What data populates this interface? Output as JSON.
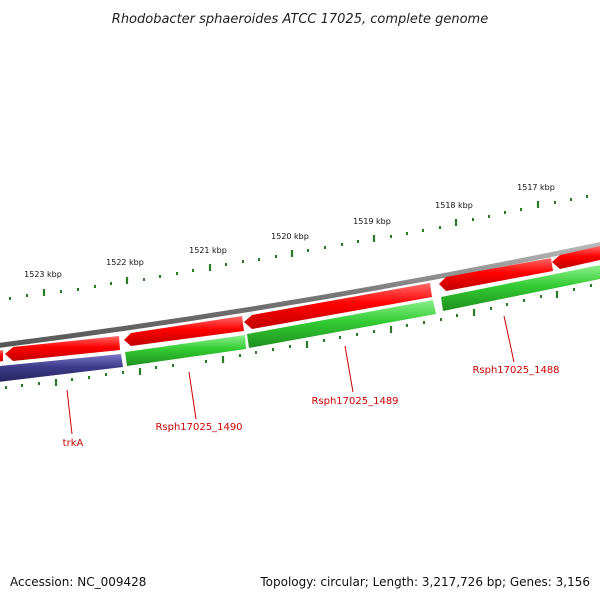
{
  "title": "Rhodobacter sphaeroides ATCC 17025, complete genome",
  "accession": "Accession: NC_009428",
  "summary": "Topology: circular; Length: 3,217,726 bp; Genes: 3,156",
  "tick_labels": [
    "1523 kbp",
    "1522 kbp",
    "1521 kbp",
    "1520 kbp",
    "1519 kbp",
    "1518 kbp",
    "1517 kbp"
  ],
  "genes": [
    {
      "name": "trkA",
      "strand": "forward"
    },
    {
      "name": "Rsph17025_1490",
      "strand": "forward"
    },
    {
      "name": "Rsph17025_1489",
      "strand": "forward"
    },
    {
      "name": "Rsph17025_1488",
      "strand": "forward"
    }
  ],
  "colors": {
    "backbone": "#8a8a8a",
    "cds_red": "#ff0000",
    "cds_green": "#33cc33",
    "cds_purple": "#3d3a8a",
    "ticks": "#2a7a2a",
    "label": "#cc0000"
  }
}
